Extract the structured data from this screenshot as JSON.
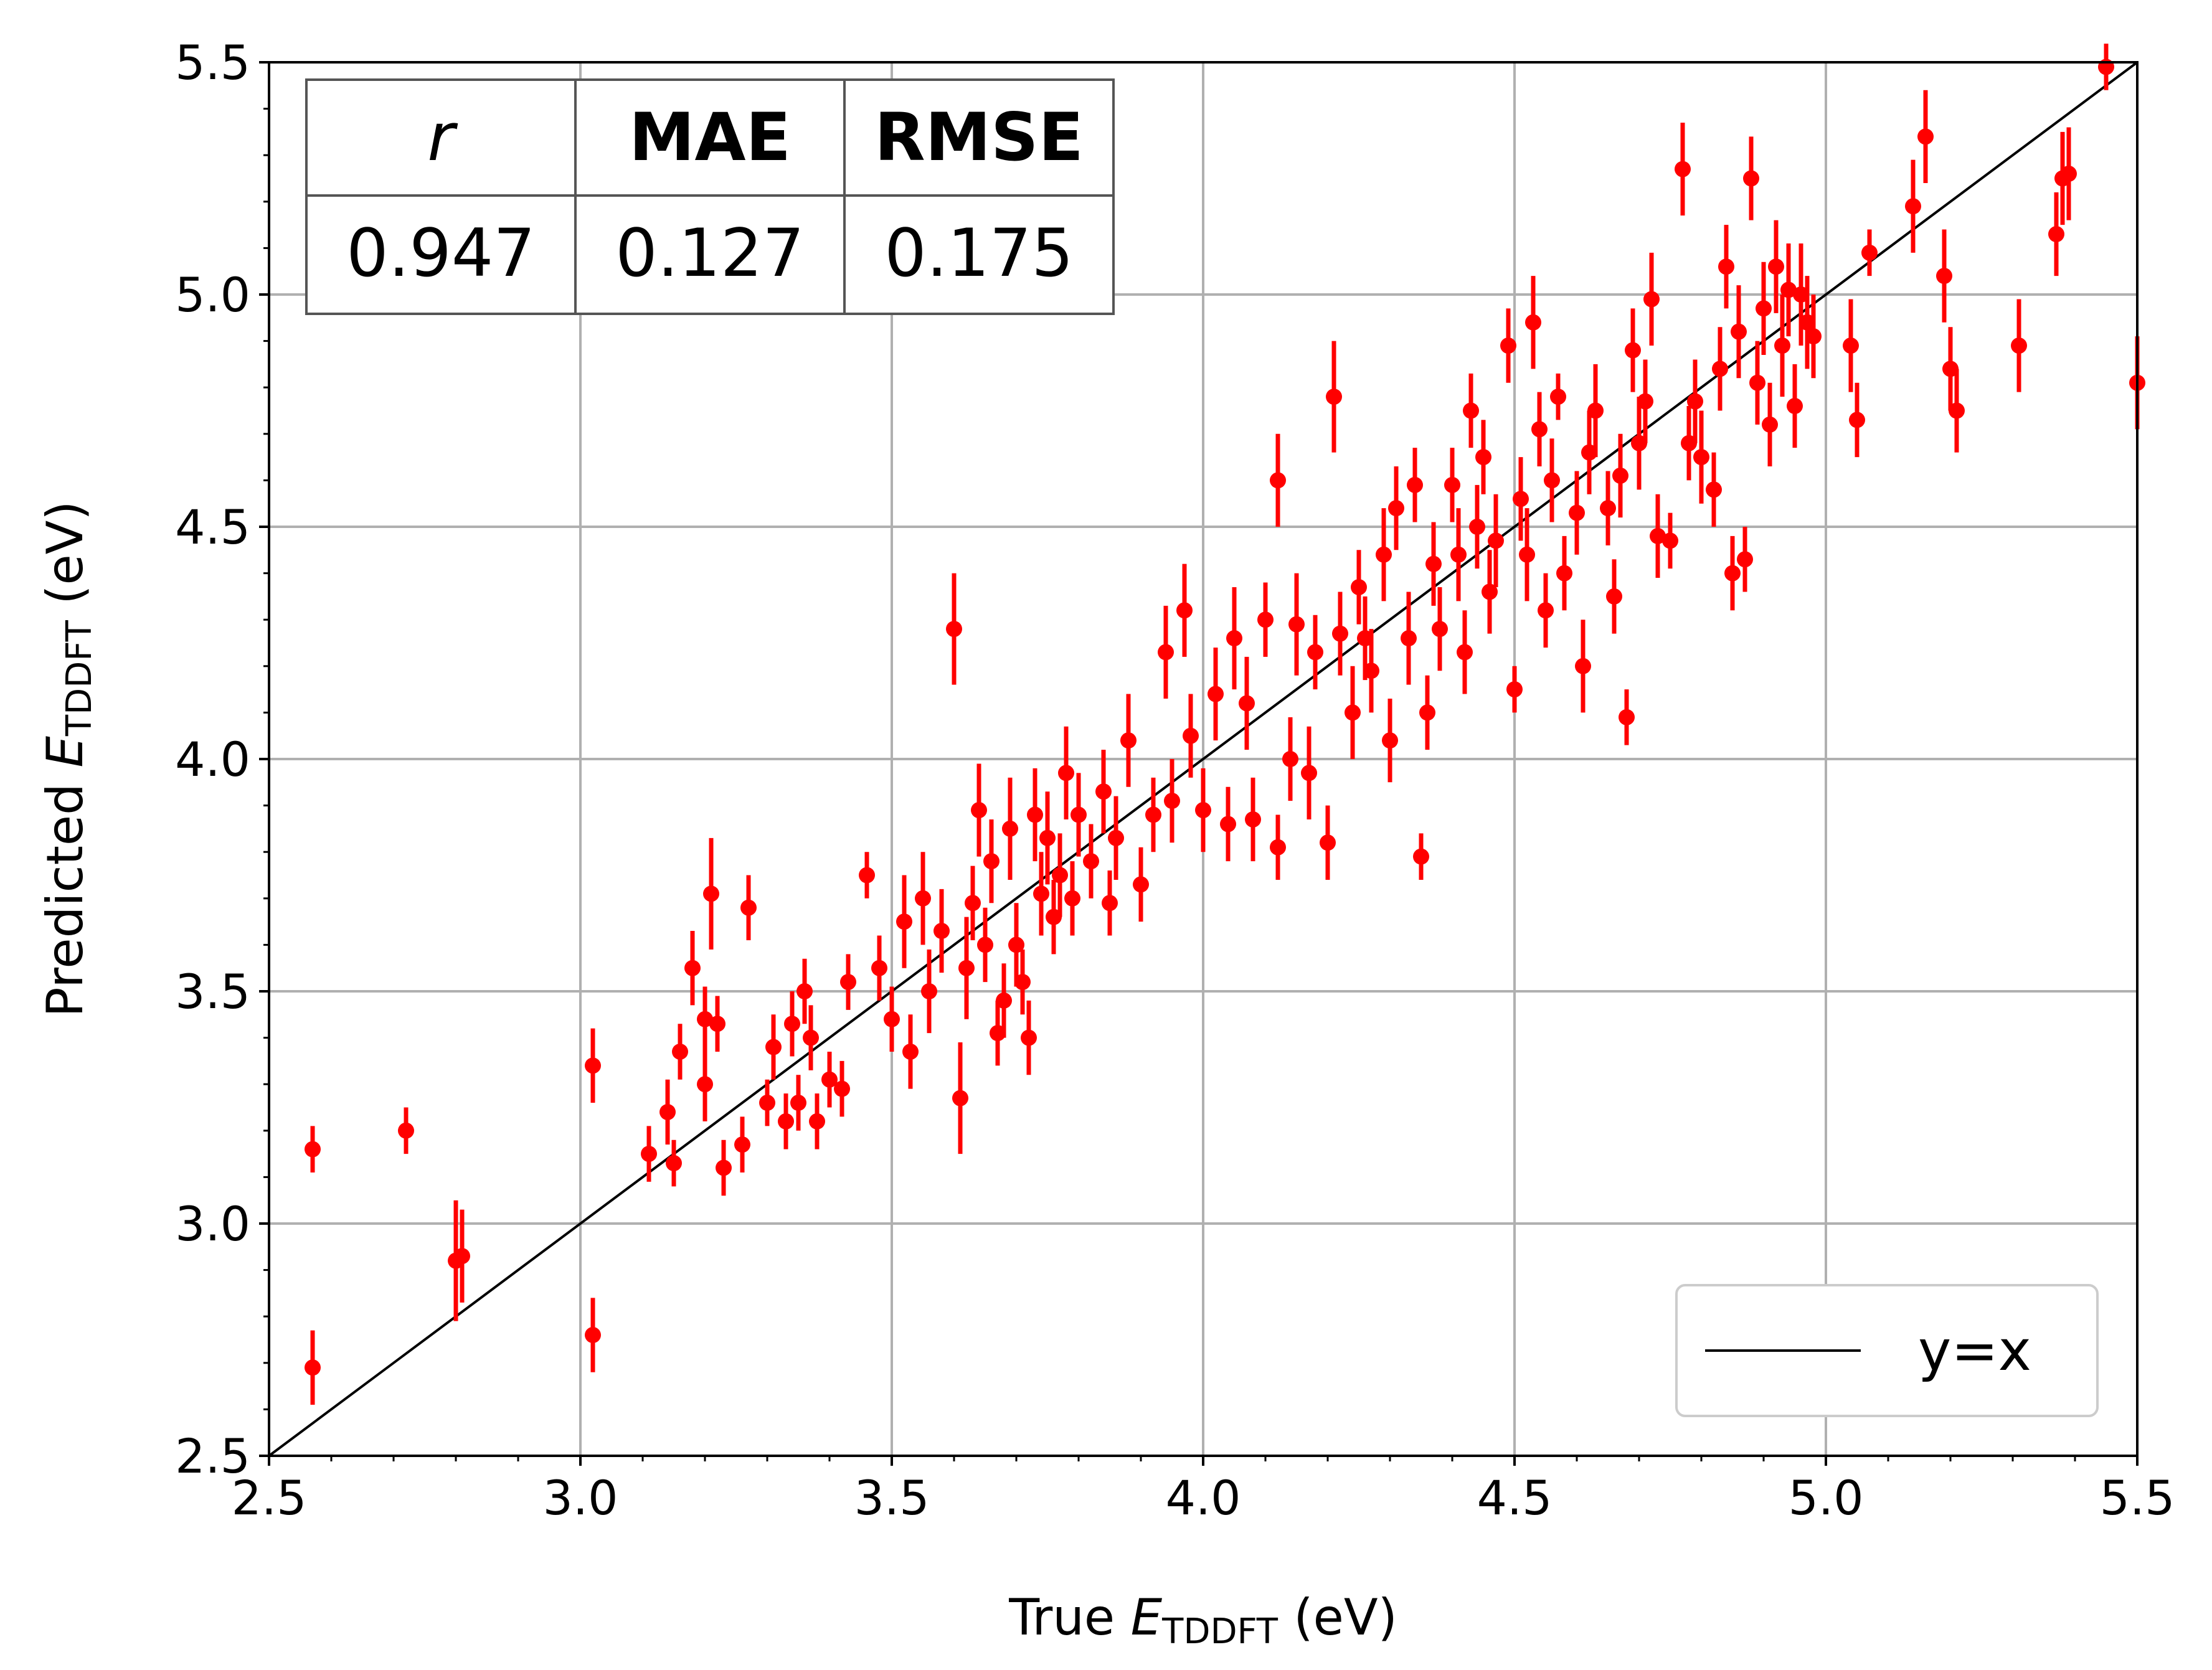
{
  "chart_data": {
    "type": "scatter",
    "xlabel": {
      "prefix": "True ",
      "var": "E",
      "sub": "TDDFT",
      "suffix": " (eV)"
    },
    "ylabel": {
      "prefix": "Predicted ",
      "var": "E",
      "sub": "TDDFT",
      "suffix": " (eV)"
    },
    "xlim": [
      2.5,
      5.5
    ],
    "ylim": [
      2.5,
      5.5
    ],
    "xticks": [
      "2.5",
      "3.0",
      "3.5",
      "4.0",
      "4.5",
      "5.0",
      "5.5"
    ],
    "yticks": [
      "2.5",
      "3.0",
      "3.5",
      "4.0",
      "4.5",
      "5.0",
      "5.5"
    ],
    "grid": true,
    "legend": {
      "position": "bottom-right",
      "entries": [
        "y=x"
      ]
    },
    "reference_line": {
      "label": "y=x",
      "color": "#000000"
    },
    "marker_color": "#ff0000",
    "metrics_table": {
      "headers": [
        "r",
        "MAE",
        "RMSE"
      ],
      "values": [
        "0.947",
        "0.127",
        "0.175"
      ]
    },
    "series": [
      {
        "points": [
          [
            2.57,
            3.16,
            0.05
          ],
          [
            2.57,
            2.69,
            0.08
          ],
          [
            2.72,
            3.2,
            0.05
          ],
          [
            2.8,
            2.92,
            0.13
          ],
          [
            2.81,
            2.93,
            0.1
          ],
          [
            3.02,
            3.34,
            0.08
          ],
          [
            3.02,
            2.76,
            0.08
          ],
          [
            3.11,
            3.15,
            0.06
          ],
          [
            3.14,
            3.24,
            0.07
          ],
          [
            3.15,
            3.13,
            0.05
          ],
          [
            3.16,
            3.37,
            0.06
          ],
          [
            3.18,
            3.55,
            0.08
          ],
          [
            3.2,
            3.44,
            0.07
          ],
          [
            3.2,
            3.3,
            0.08
          ],
          [
            3.21,
            3.71,
            0.12
          ],
          [
            3.22,
            3.43,
            0.06
          ],
          [
            3.23,
            3.12,
            0.06
          ],
          [
            3.26,
            3.17,
            0.06
          ],
          [
            3.27,
            3.68,
            0.07
          ],
          [
            3.3,
            3.26,
            0.05
          ],
          [
            3.31,
            3.38,
            0.07
          ],
          [
            3.33,
            3.22,
            0.06
          ],
          [
            3.34,
            3.43,
            0.07
          ],
          [
            3.35,
            3.26,
            0.06
          ],
          [
            3.36,
            3.5,
            0.07
          ],
          [
            3.37,
            3.4,
            0.07
          ],
          [
            3.38,
            3.22,
            0.06
          ],
          [
            3.4,
            3.31,
            0.06
          ],
          [
            3.42,
            3.29,
            0.06
          ],
          [
            3.43,
            3.52,
            0.06
          ],
          [
            3.46,
            3.75,
            0.05
          ],
          [
            3.48,
            3.55,
            0.07
          ],
          [
            3.5,
            3.44,
            0.07
          ],
          [
            3.52,
            3.65,
            0.1
          ],
          [
            3.53,
            3.37,
            0.08
          ],
          [
            3.55,
            3.7,
            0.1
          ],
          [
            3.56,
            3.5,
            0.09
          ],
          [
            3.58,
            3.63,
            0.09
          ],
          [
            3.6,
            4.28,
            0.12
          ],
          [
            3.61,
            3.27,
            0.12
          ],
          [
            3.62,
            3.55,
            0.11
          ],
          [
            3.63,
            3.69,
            0.08
          ],
          [
            3.64,
            3.89,
            0.1
          ],
          [
            3.65,
            3.6,
            0.08
          ],
          [
            3.66,
            3.78,
            0.09
          ],
          [
            3.67,
            3.41,
            0.07
          ],
          [
            3.68,
            3.48,
            0.08
          ],
          [
            3.69,
            3.85,
            0.11
          ],
          [
            3.7,
            3.6,
            0.09
          ],
          [
            3.71,
            3.52,
            0.07
          ],
          [
            3.72,
            3.4,
            0.08
          ],
          [
            3.73,
            3.88,
            0.1
          ],
          [
            3.74,
            3.71,
            0.09
          ],
          [
            3.75,
            3.83,
            0.1
          ],
          [
            3.76,
            3.66,
            0.08
          ],
          [
            3.77,
            3.75,
            0.09
          ],
          [
            3.78,
            3.97,
            0.1
          ],
          [
            3.79,
            3.7,
            0.08
          ],
          [
            3.8,
            3.88,
            0.09
          ],
          [
            3.82,
            3.78,
            0.08
          ],
          [
            3.84,
            3.93,
            0.09
          ],
          [
            3.85,
            3.69,
            0.07
          ],
          [
            3.86,
            3.83,
            0.09
          ],
          [
            3.88,
            4.04,
            0.1
          ],
          [
            3.9,
            3.73,
            0.08
          ],
          [
            3.92,
            3.88,
            0.08
          ],
          [
            3.94,
            4.23,
            0.1
          ],
          [
            3.95,
            3.91,
            0.09
          ],
          [
            3.97,
            4.32,
            0.1
          ],
          [
            3.98,
            4.05,
            0.09
          ],
          [
            4.0,
            3.89,
            0.09
          ],
          [
            4.02,
            4.14,
            0.1
          ],
          [
            4.04,
            3.86,
            0.08
          ],
          [
            4.05,
            4.26,
            0.11
          ],
          [
            4.07,
            4.12,
            0.1
          ],
          [
            4.08,
            3.87,
            0.09
          ],
          [
            4.1,
            4.3,
            0.08
          ],
          [
            4.12,
            3.81,
            0.07
          ],
          [
            4.12,
            4.6,
            0.1
          ],
          [
            4.14,
            4.0,
            0.09
          ],
          [
            4.15,
            4.29,
            0.11
          ],
          [
            4.17,
            3.97,
            0.1
          ],
          [
            4.18,
            4.23,
            0.08
          ],
          [
            4.2,
            3.82,
            0.08
          ],
          [
            4.21,
            4.78,
            0.12
          ],
          [
            4.22,
            4.27,
            0.09
          ],
          [
            4.24,
            4.1,
            0.1
          ],
          [
            4.25,
            4.37,
            0.08
          ],
          [
            4.26,
            4.26,
            0.09
          ],
          [
            4.27,
            4.19,
            0.09
          ],
          [
            4.29,
            4.44,
            0.1
          ],
          [
            4.3,
            4.04,
            0.09
          ],
          [
            4.31,
            4.54,
            0.09
          ],
          [
            4.33,
            4.26,
            0.1
          ],
          [
            4.34,
            4.59,
            0.08
          ],
          [
            4.35,
            3.79,
            0.05
          ],
          [
            4.36,
            4.1,
            0.08
          ],
          [
            4.37,
            4.42,
            0.09
          ],
          [
            4.38,
            4.28,
            0.09
          ],
          [
            4.4,
            4.59,
            0.08
          ],
          [
            4.41,
            4.44,
            0.1
          ],
          [
            4.42,
            4.23,
            0.09
          ],
          [
            4.43,
            4.75,
            0.08
          ],
          [
            4.44,
            4.5,
            0.09
          ],
          [
            4.45,
            4.65,
            0.08
          ],
          [
            4.46,
            4.36,
            0.09
          ],
          [
            4.47,
            4.47,
            0.1
          ],
          [
            4.49,
            4.89,
            0.08
          ],
          [
            4.5,
            4.15,
            0.05
          ],
          [
            4.51,
            4.56,
            0.09
          ],
          [
            4.52,
            4.44,
            0.1
          ],
          [
            4.53,
            4.94,
            0.1
          ],
          [
            4.54,
            4.71,
            0.08
          ],
          [
            4.55,
            4.32,
            0.08
          ],
          [
            4.56,
            4.6,
            0.09
          ],
          [
            4.57,
            4.78,
            0.05
          ],
          [
            4.58,
            4.4,
            0.08
          ],
          [
            4.6,
            4.53,
            0.09
          ],
          [
            4.61,
            4.2,
            0.1
          ],
          [
            4.62,
            4.66,
            0.09
          ],
          [
            4.63,
            4.75,
            0.1
          ],
          [
            4.65,
            4.54,
            0.08
          ],
          [
            4.66,
            4.35,
            0.08
          ],
          [
            4.67,
            4.61,
            0.09
          ],
          [
            4.68,
            4.09,
            0.06
          ],
          [
            4.69,
            4.88,
            0.09
          ],
          [
            4.7,
            4.68,
            0.1
          ],
          [
            4.71,
            4.77,
            0.09
          ],
          [
            4.72,
            4.99,
            0.1
          ],
          [
            4.73,
            4.48,
            0.09
          ],
          [
            4.75,
            4.47,
            0.06
          ],
          [
            4.77,
            5.27,
            0.1
          ],
          [
            4.78,
            4.68,
            0.08
          ],
          [
            4.79,
            4.77,
            0.09
          ],
          [
            4.8,
            4.65,
            0.1
          ],
          [
            4.82,
            4.58,
            0.08
          ],
          [
            4.83,
            4.84,
            0.09
          ],
          [
            4.84,
            5.06,
            0.09
          ],
          [
            4.85,
            4.4,
            0.08
          ],
          [
            4.86,
            4.92,
            0.1
          ],
          [
            4.87,
            4.43,
            0.07
          ],
          [
            4.88,
            5.25,
            0.09
          ],
          [
            4.89,
            4.81,
            0.09
          ],
          [
            4.9,
            4.97,
            0.1
          ],
          [
            4.91,
            4.72,
            0.09
          ],
          [
            4.92,
            5.06,
            0.1
          ],
          [
            4.93,
            4.89,
            0.11
          ],
          [
            4.94,
            5.01,
            0.1
          ],
          [
            4.95,
            4.76,
            0.09
          ],
          [
            4.96,
            5.0,
            0.11
          ],
          [
            4.97,
            4.94,
            0.1
          ],
          [
            4.98,
            4.91,
            0.09
          ],
          [
            5.04,
            4.89,
            0.1
          ],
          [
            5.05,
            4.73,
            0.08
          ],
          [
            5.07,
            5.09,
            0.05
          ],
          [
            5.14,
            5.19,
            0.1
          ],
          [
            5.16,
            5.34,
            0.1
          ],
          [
            5.19,
            5.04,
            0.1
          ],
          [
            5.2,
            4.84,
            0.09
          ],
          [
            5.21,
            4.75,
            0.09
          ],
          [
            5.31,
            4.89,
            0.1
          ],
          [
            5.37,
            5.13,
            0.09
          ],
          [
            5.38,
            5.25,
            0.1
          ],
          [
            5.39,
            5.26,
            0.1
          ],
          [
            5.45,
            5.49,
            0.05
          ],
          [
            5.5,
            4.81,
            0.1
          ]
        ]
      }
    ]
  }
}
